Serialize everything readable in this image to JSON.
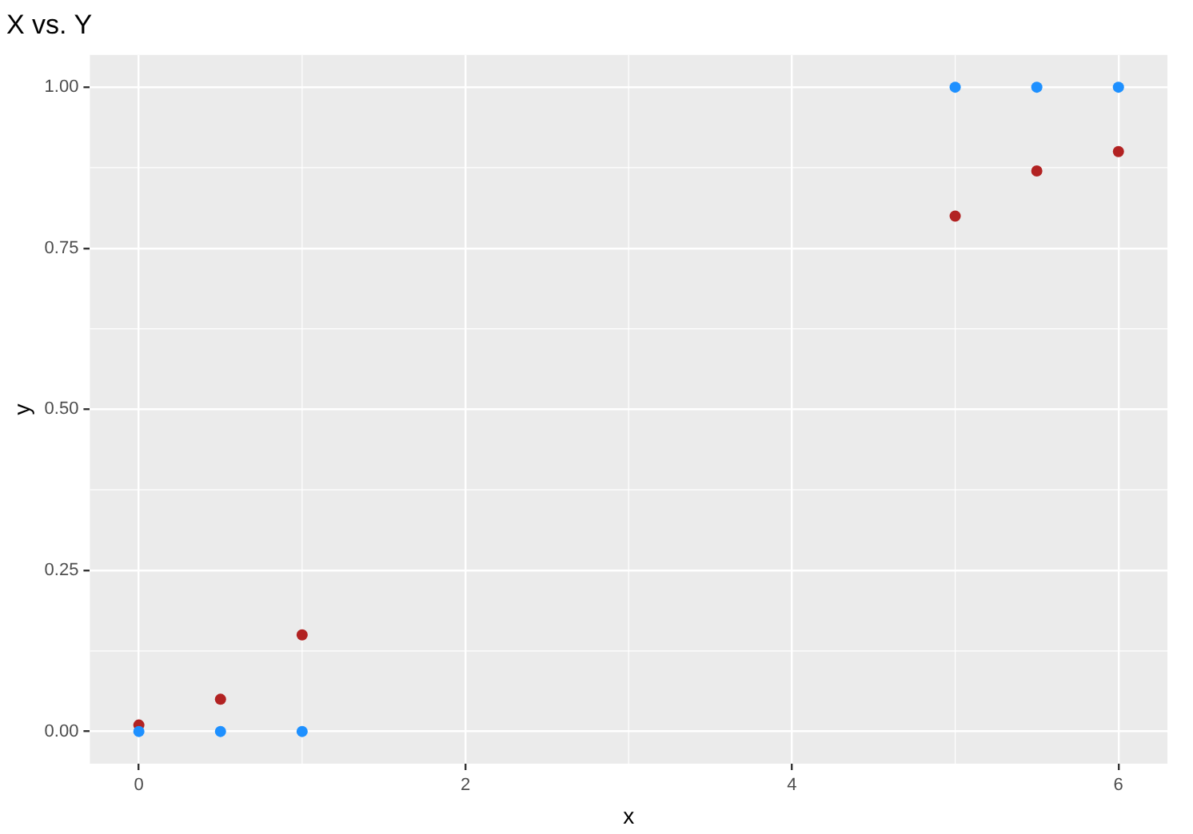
{
  "chart_data": {
    "type": "scatter",
    "title": "X vs. Y",
    "xlabel": "x",
    "ylabel": "y",
    "xlim": [
      -0.3,
      6.3
    ],
    "xticks": [
      0,
      2,
      4,
      6
    ],
    "ylim": [
      -0.05,
      1.05
    ],
    "yticks": [
      {
        "value": 0,
        "label": "0.00"
      },
      {
        "value": 0.25,
        "label": "0.25"
      },
      {
        "value": 0.5,
        "label": "0.50"
      },
      {
        "value": 0.75,
        "label": "0.75"
      },
      {
        "value": 1,
        "label": "1.00"
      }
    ],
    "grid": true,
    "legend": false,
    "marker": "circle",
    "series": [
      {
        "color": "#1e90ff",
        "x": [
          0,
          0.5,
          1,
          5,
          5.5,
          6
        ],
        "values": [
          0,
          0,
          0,
          1,
          1,
          1
        ]
      },
      {
        "color": "#b22222",
        "x": [
          0,
          0.5,
          1,
          5,
          5.5,
          6
        ],
        "values": [
          0.01,
          0.05,
          0.15,
          0.8,
          0.87,
          0.9
        ]
      }
    ]
  }
}
